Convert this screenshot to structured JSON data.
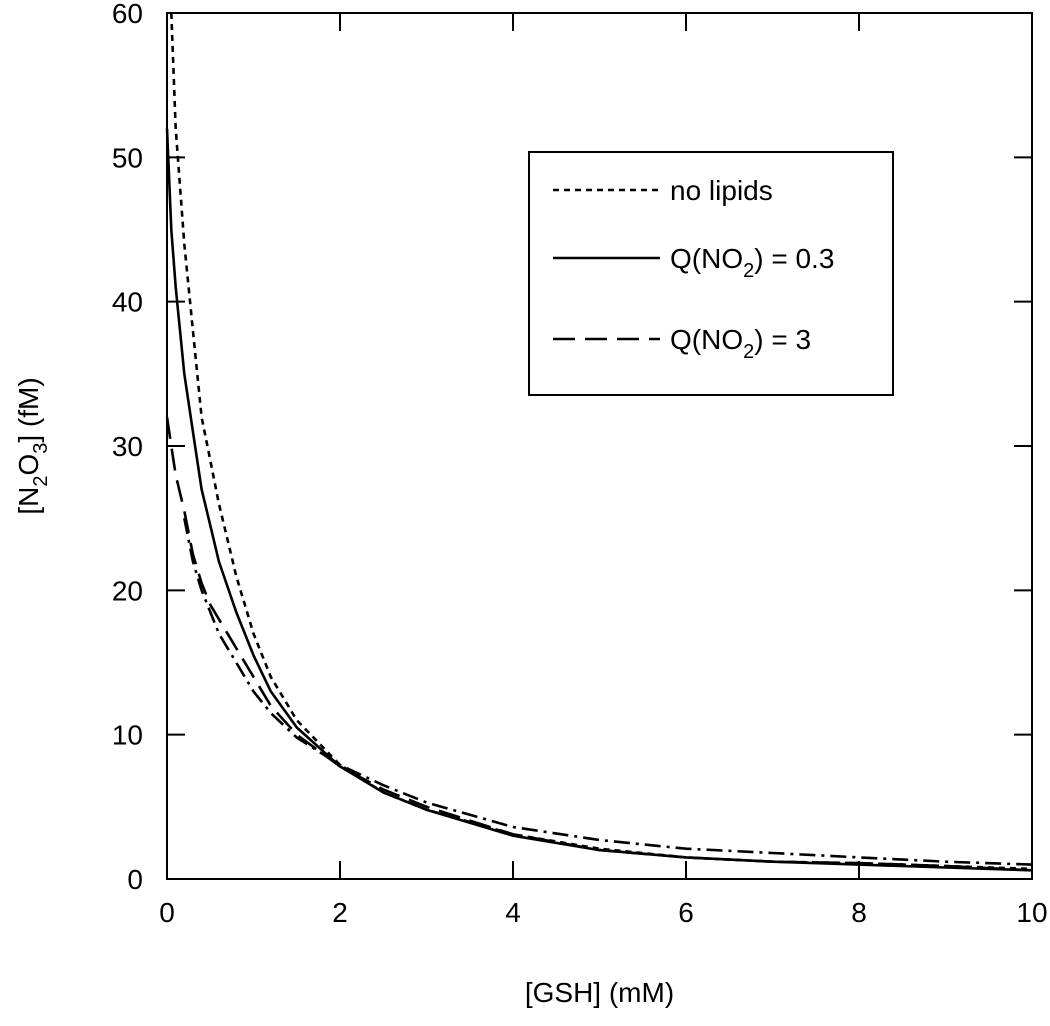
{
  "chart_data": {
    "type": "line",
    "xlabel": "[GSH] (mM)",
    "ylabel_parts": [
      "[N",
      "2",
      "O",
      "3",
      "] (fM)"
    ],
    "xlim": [
      0,
      10
    ],
    "ylim": [
      0,
      60
    ],
    "x_ticks": [
      0,
      2,
      4,
      6,
      8,
      10
    ],
    "y_ticks": [
      0,
      10,
      20,
      30,
      40,
      50,
      60
    ],
    "x_tick_labels": [
      "0",
      "2",
      "4",
      "6",
      "8",
      "10"
    ],
    "y_tick_labels": [
      "0",
      "10",
      "20",
      "30",
      "40",
      "50",
      "60"
    ],
    "grid": false,
    "legend_position": "top-right",
    "legend": [
      {
        "style": "dotted",
        "text_parts": [
          "no  lipids"
        ]
      },
      {
        "style": "solid",
        "text_parts": [
          "Q(NO",
          "2",
          ") = 0.3"
        ]
      },
      {
        "style": "dashed",
        "text_parts": [
          "Q(NO",
          "2",
          ") = 3"
        ]
      }
    ],
    "series": [
      {
        "style": "dotted",
        "x": [
          0.05,
          0.1,
          0.2,
          0.3,
          0.4,
          0.5,
          0.6,
          0.8,
          1.0,
          1.2,
          1.5,
          2,
          2.5,
          3,
          4,
          5,
          6,
          7,
          8,
          9,
          10
        ],
        "y": [
          60,
          52,
          44,
          38,
          32,
          29,
          26,
          21,
          17,
          14,
          11,
          7.9,
          6.0,
          4.8,
          3.1,
          2.1,
          1.5,
          1.2,
          1.1,
          0.9,
          0.7
        ]
      },
      {
        "style": "solid",
        "x": [
          0,
          0.05,
          0.1,
          0.2,
          0.3,
          0.4,
          0.5,
          0.6,
          0.8,
          1.0,
          1.2,
          1.5,
          2,
          2.5,
          3,
          4,
          5,
          6,
          7,
          8,
          9,
          10
        ],
        "y": [
          52,
          45,
          41,
          35,
          31,
          27,
          24.5,
          22,
          18.5,
          15.5,
          13,
          10.5,
          7.8,
          6.0,
          4.8,
          3.0,
          2.0,
          1.5,
          1.2,
          1.0,
          0.8,
          0.6
        ]
      },
      {
        "style": "dashed",
        "x": [
          0,
          0.05,
          0.1,
          0.2,
          0.3,
          0.4,
          0.5,
          0.6,
          0.8,
          1.0,
          1.2,
          1.5,
          2,
          2.5,
          3,
          4,
          5,
          6,
          7,
          8,
          9,
          10
        ],
        "y": [
          32,
          30,
          28,
          25.5,
          22.5,
          20.5,
          19,
          18,
          16,
          14,
          12,
          10,
          7.8,
          6.2,
          5.0,
          3.1,
          2.0,
          1.5,
          1.2,
          1.1,
          0.9,
          0.6
        ]
      },
      {
        "style": "dashdot",
        "x": [
          0.2,
          0.3,
          0.4,
          0.5,
          0.6,
          0.8,
          1.0,
          1.2,
          1.5,
          2,
          2.5,
          3,
          4,
          5,
          6,
          7,
          8,
          9,
          10
        ],
        "y": [
          25,
          22,
          20,
          18.5,
          17,
          15,
          13,
          11.5,
          9.8,
          7.9,
          6.5,
          5.3,
          3.6,
          2.7,
          2.1,
          1.8,
          1.5,
          1.2,
          1.0
        ]
      }
    ]
  }
}
